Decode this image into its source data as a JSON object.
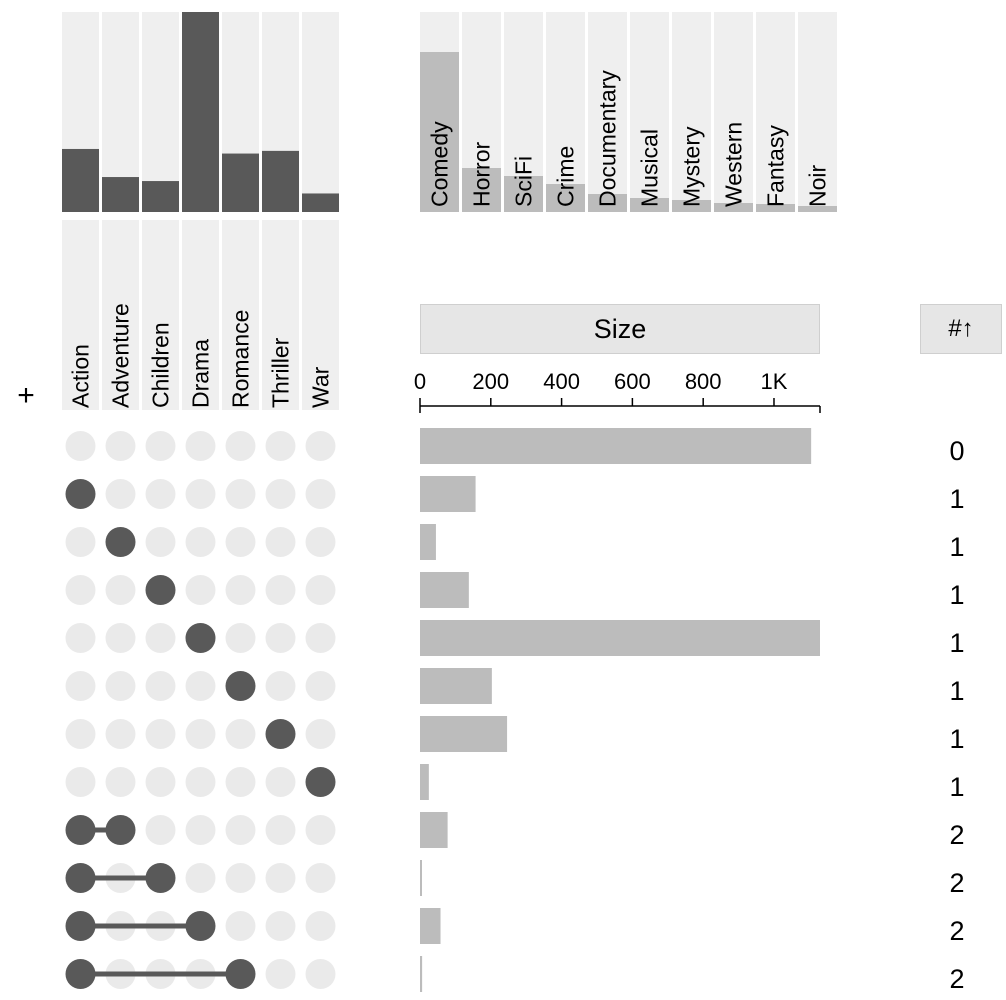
{
  "header": {
    "size_label": "Size",
    "degree_label": "#",
    "degree_sort_icon": "arrow-up-icon",
    "add_label": "+"
  },
  "colors": {
    "dark": "#595959",
    "light": "#bcbcbc",
    "track": "#efefef",
    "dot_off": "#eaeaea"
  },
  "chart_data": [
    {
      "type": "bar",
      "name": "set-sizes",
      "categories": [
        "Action",
        "Adventure",
        "Children",
        "Drama",
        "Romance",
        "Thriller",
        "War"
      ],
      "values": [
        330,
        183,
        162,
        1047,
        306,
        320,
        97
      ],
      "ylim": [
        0,
        1047
      ]
    },
    {
      "type": "bar",
      "name": "other-sets",
      "categories": [
        "Comedy",
        "Horror",
        "SciFi",
        "Crime",
        "Documentary",
        "Musical",
        "Mystery",
        "Western",
        "Fantasy",
        "Noir"
      ],
      "values": [
        800,
        220,
        180,
        140,
        90,
        70,
        60,
        45,
        40,
        30
      ],
      "ylim": [
        0,
        1000
      ]
    },
    {
      "type": "bar",
      "name": "intersection-sizes",
      "xlabel": "Size",
      "xlim": [
        0,
        1130
      ],
      "ticks": [
        0,
        200,
        400,
        600,
        800,
        1000
      ],
      "tick_labels": [
        "0",
        "200",
        "400",
        "600",
        "800",
        "1K"
      ],
      "rows": [
        {
          "sets": [],
          "size": 1105,
          "degree": "0"
        },
        {
          "sets": [
            "Action"
          ],
          "size": 157,
          "degree": "1"
        },
        {
          "sets": [
            "Adventure"
          ],
          "size": 45,
          "degree": "1"
        },
        {
          "sets": [
            "Children"
          ],
          "size": 138,
          "degree": "1"
        },
        {
          "sets": [
            "Drama"
          ],
          "size": 1130,
          "degree": "1"
        },
        {
          "sets": [
            "Romance"
          ],
          "size": 203,
          "degree": "1"
        },
        {
          "sets": [
            "Thriller"
          ],
          "size": 246,
          "degree": "1"
        },
        {
          "sets": [
            "War"
          ],
          "size": 25,
          "degree": "1"
        },
        {
          "sets": [
            "Action",
            "Adventure"
          ],
          "size": 78,
          "degree": "2"
        },
        {
          "sets": [
            "Action",
            "Children"
          ],
          "size": 5,
          "degree": "2"
        },
        {
          "sets": [
            "Action",
            "Drama"
          ],
          "size": 58,
          "degree": "2"
        },
        {
          "sets": [
            "Action",
            "Romance"
          ],
          "size": 6,
          "degree": "2"
        }
      ]
    }
  ]
}
